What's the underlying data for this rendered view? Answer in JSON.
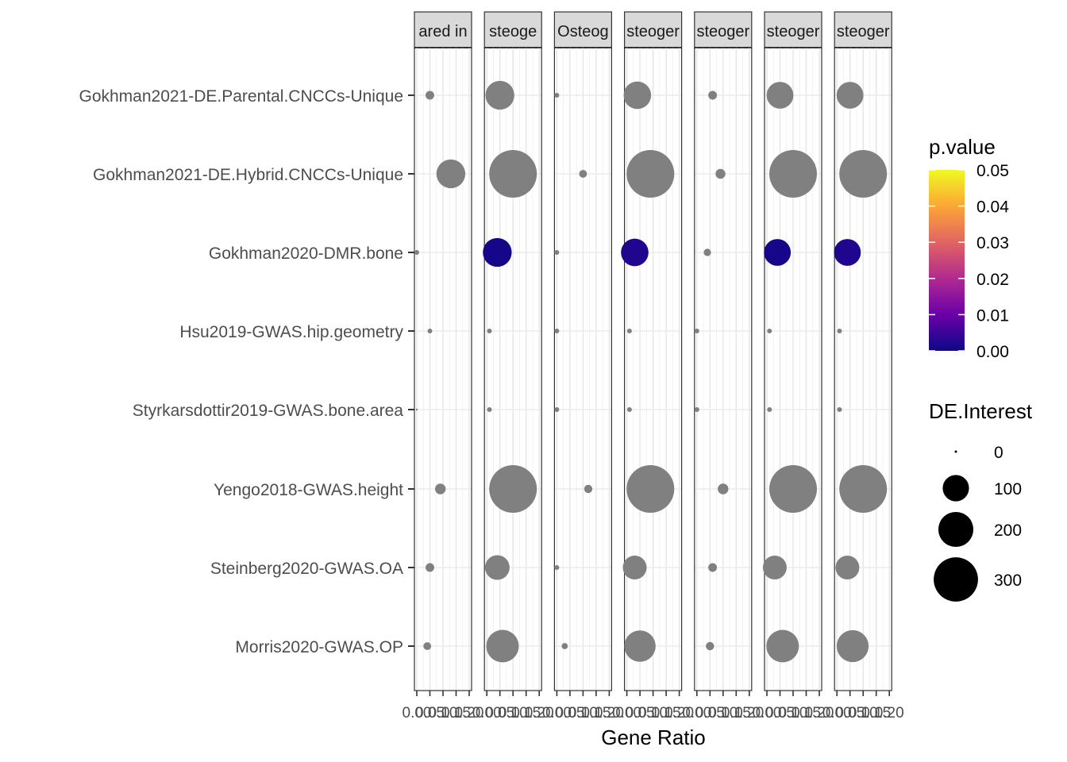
{
  "chart_data": {
    "type": "scatter",
    "xlabel": "Gene Ratio",
    "xlim": [
      0,
      0.2
    ],
    "x_tick_labels": [
      "0.00",
      "0.05",
      "0.10",
      "0.15",
      "0.20"
    ],
    "grid": true,
    "facets": [
      "ared in",
      "steoge",
      "Osteog",
      "steoger",
      "steoger",
      "steoger",
      "steoger"
    ],
    "categories": [
      "Gokhman2021-DE.Parental.CNCCs-Unique",
      "Gokhman2021-DE.Hybrid.CNCCs-Unique",
      "Gokhman2020-DMR.bone",
      "Hsu2019-GWAS.hip.geometry",
      "Styrkarsdottir2019-GWAS.bone.area",
      "Yengo2018-GWAS.height",
      "Steinberg2020-GWAS.OA",
      "Morris2020-GWAS.OP"
    ],
    "points": [
      [
        [
          0.05,
          10,
          null
        ],
        [
          0.13,
          110,
          null
        ],
        [
          0.0,
          1,
          null
        ],
        [
          0.05,
          1,
          null
        ],
        [
          0.0,
          0,
          null
        ],
        [
          0.09,
          15,
          null
        ],
        [
          0.05,
          10,
          null
        ],
        [
          0.04,
          8,
          null
        ]
      ],
      [
        [
          0.05,
          110,
          null
        ],
        [
          0.1,
          300,
          null
        ],
        [
          0.04,
          110,
          0.001
        ],
        [
          0.01,
          2,
          null
        ],
        [
          0.01,
          2,
          null
        ],
        [
          0.1,
          300,
          null
        ],
        [
          0.04,
          80,
          null
        ],
        [
          0.06,
          140,
          null
        ]
      ],
      [
        [
          0.0,
          1,
          null
        ],
        [
          0.1,
          8,
          null
        ],
        [
          0.0,
          1,
          null
        ],
        [
          0.0,
          1,
          null
        ],
        [
          0.0,
          1,
          null
        ],
        [
          0.12,
          9,
          null
        ],
        [
          0.0,
          1,
          null
        ],
        [
          0.03,
          5,
          null
        ]
      ],
      [
        [
          0.04,
          100,
          null
        ],
        [
          0.09,
          300,
          null
        ],
        [
          0.03,
          100,
          0.002
        ],
        [
          0.01,
          2,
          null
        ],
        [
          0.01,
          2,
          null
        ],
        [
          0.09,
          300,
          null
        ],
        [
          0.03,
          75,
          null
        ],
        [
          0.05,
          130,
          null
        ]
      ],
      [
        [
          0.06,
          10,
          null
        ],
        [
          0.09,
          13,
          null
        ],
        [
          0.04,
          7,
          null
        ],
        [
          0.0,
          1,
          null
        ],
        [
          0.0,
          1,
          null
        ],
        [
          0.1,
          15,
          null
        ],
        [
          0.06,
          10,
          null
        ],
        [
          0.05,
          9,
          null
        ]
      ],
      [
        [
          0.05,
          95,
          null
        ],
        [
          0.1,
          300,
          null
        ],
        [
          0.04,
          95,
          0.001
        ],
        [
          0.01,
          2,
          null
        ],
        [
          0.01,
          2,
          null
        ],
        [
          0.1,
          300,
          null
        ],
        [
          0.03,
          75,
          null
        ],
        [
          0.06,
          140,
          null
        ]
      ],
      [
        [
          0.05,
          95,
          null
        ],
        [
          0.1,
          300,
          null
        ],
        [
          0.04,
          95,
          0.002
        ],
        [
          0.01,
          2,
          null
        ],
        [
          0.01,
          2,
          null
        ],
        [
          0.1,
          300,
          null
        ],
        [
          0.04,
          75,
          null
        ],
        [
          0.06,
          135,
          null
        ]
      ]
    ],
    "color_legend": {
      "title": "p.value",
      "range": [
        0,
        0.05
      ],
      "tick_labels": [
        "0.05",
        "0.04",
        "0.03",
        "0.02",
        "0.01",
        "0.00"
      ],
      "palette": [
        "#0d0887",
        "#6a00a8",
        "#b12a90",
        "#e16462",
        "#fca636",
        "#f0f921"
      ]
    },
    "size_legend": {
      "title": "DE.Interest",
      "values": [
        0,
        100,
        200,
        300
      ],
      "labels": [
        "0",
        "100",
        "200",
        "300"
      ]
    },
    "na_color": "#808080"
  }
}
